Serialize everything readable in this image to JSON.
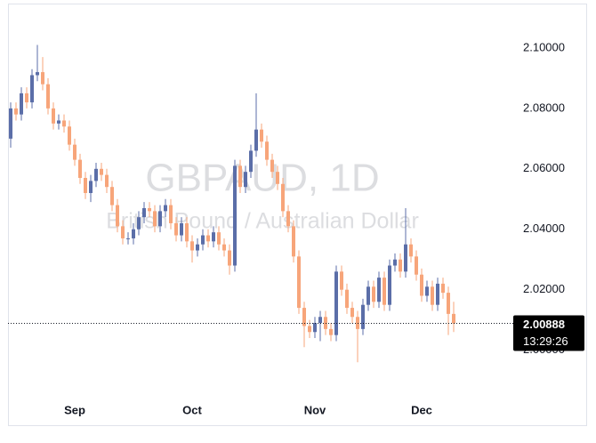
{
  "chart_data": {
    "type": "candlestick",
    "watermark": "GBPAUD, 1D",
    "watermark_subtitle": "British Pound / Australian Dollar",
    "countdown": "13:29:26",
    "up_color": "#5b6ea8",
    "down_color": "#f7a57a",
    "ylim": [
      1.984,
      2.1144
    ],
    "yticks": [
      {
        "value": 2.0,
        "label": "2.00000"
      },
      {
        "value": 2.02,
        "label": "2.02000"
      },
      {
        "value": 2.04,
        "label": "2.04000"
      },
      {
        "value": 2.06,
        "label": "2.06000"
      },
      {
        "value": 2.08,
        "label": "2.08000"
      },
      {
        "value": 2.1,
        "label": "2.10000"
      }
    ],
    "categories": [
      null,
      null,
      null,
      null,
      null,
      null,
      null,
      null,
      null,
      null,
      null,
      null,
      "Sep",
      null,
      null,
      null,
      null,
      null,
      null,
      null,
      null,
      null,
      null,
      null,
      null,
      null,
      null,
      null,
      null,
      null,
      null,
      null,
      null,
      null,
      "Oct",
      null,
      null,
      null,
      null,
      null,
      null,
      null,
      null,
      null,
      null,
      null,
      null,
      null,
      null,
      null,
      null,
      null,
      null,
      null,
      null,
      null,
      null,
      "Nov",
      null,
      null,
      null,
      null,
      null,
      null,
      null,
      null,
      null,
      null,
      null,
      null,
      null,
      null,
      null,
      null,
      null,
      null,
      null,
      "Dec",
      null,
      null,
      null,
      null,
      null,
      null
    ],
    "open": [
      2.07,
      2.08,
      2.078,
      2.085,
      2.082,
      2.091,
      2.092,
      2.088,
      2.08,
      2.075,
      2.076,
      2.074,
      2.068,
      2.063,
      2.057,
      2.052,
      2.056,
      2.06,
      2.058,
      2.054,
      2.048,
      2.041,
      2.037,
      2.037,
      2.04,
      2.044,
      2.047,
      2.046,
      2.041,
      2.046,
      2.048,
      2.042,
      2.038,
      2.042,
      2.036,
      2.033,
      2.035,
      2.038,
      2.036,
      2.039,
      2.035,
      2.033,
      2.028,
      2.061,
      2.054,
      2.059,
      2.066,
      2.073,
      2.069,
      2.063,
      2.059,
      2.055,
      2.046,
      2.041,
      2.031,
      2.014,
      2.008,
      2.006,
      2.009,
      2.011,
      2.007,
      2.005,
      2.026,
      2.02,
      2.014,
      2.011,
      2.007,
      2.015,
      2.021,
      2.016,
      2.024,
      2.015,
      2.028,
      2.03,
      2.026,
      2.035,
      2.031,
      2.025,
      2.018,
      2.021,
      2.015,
      2.022,
      2.019,
      2.012
    ],
    "high": [
      2.082,
      2.082,
      2.087,
      2.087,
      2.093,
      2.101,
      2.097,
      2.09,
      2.082,
      2.078,
      2.078,
      2.076,
      2.07,
      2.065,
      2.059,
      2.058,
      2.062,
      2.062,
      2.06,
      2.056,
      2.05,
      2.043,
      2.039,
      2.042,
      2.046,
      2.049,
      2.049,
      2.048,
      2.048,
      2.05,
      2.05,
      2.044,
      2.044,
      2.044,
      2.038,
      2.037,
      2.04,
      2.04,
      2.041,
      2.041,
      2.037,
      2.035,
      2.063,
      2.063,
      2.061,
      2.068,
      2.085,
      2.075,
      2.071,
      2.065,
      2.061,
      2.057,
      2.048,
      2.043,
      2.033,
      2.016,
      2.01,
      2.011,
      2.013,
      2.013,
      2.009,
      2.028,
      2.028,
      2.022,
      2.016,
      2.013,
      2.017,
      2.023,
      2.023,
      2.026,
      2.026,
      2.03,
      2.032,
      2.032,
      2.047,
      2.037,
      2.033,
      2.027,
      2.023,
      2.023,
      2.024,
      2.024,
      2.021,
      2.016
    ],
    "low": [
      2.067,
      2.076,
      2.076,
      2.08,
      2.08,
      2.089,
      2.086,
      2.078,
      2.073,
      2.073,
      2.072,
      2.066,
      2.061,
      2.055,
      2.05,
      2.049,
      2.054,
      2.056,
      2.052,
      2.046,
      2.039,
      2.035,
      2.035,
      2.035,
      2.038,
      2.042,
      2.044,
      2.039,
      2.039,
      2.044,
      2.04,
      2.036,
      2.036,
      2.034,
      2.029,
      2.031,
      2.033,
      2.034,
      2.034,
      2.033,
      2.031,
      2.025,
      2.026,
      2.052,
      2.052,
      2.057,
      2.064,
      2.067,
      2.061,
      2.057,
      2.053,
      2.044,
      2.039,
      2.029,
      2.012,
      2.001,
      2.004,
      2.004,
      2.003,
      2.005,
      2.003,
      2.003,
      2.018,
      2.012,
      2.009,
      1.996,
      2.005,
      2.013,
      2.014,
      2.014,
      2.013,
      2.013,
      2.026,
      2.024,
      2.024,
      2.029,
      2.023,
      2.016,
      2.016,
      2.013,
      2.013,
      2.017,
      2.005,
      2.006
    ],
    "close": [
      2.08,
      2.078,
      2.085,
      2.082,
      2.091,
      2.092,
      2.088,
      2.08,
      2.075,
      2.076,
      2.074,
      2.068,
      2.063,
      2.057,
      2.052,
      2.056,
      2.06,
      2.058,
      2.054,
      2.048,
      2.041,
      2.037,
      2.037,
      2.04,
      2.044,
      2.047,
      2.046,
      2.041,
      2.046,
      2.048,
      2.042,
      2.038,
      2.042,
      2.036,
      2.033,
      2.035,
      2.038,
      2.036,
      2.039,
      2.035,
      2.033,
      2.028,
      2.061,
      2.054,
      2.059,
      2.066,
      2.073,
      2.069,
      2.063,
      2.059,
      2.055,
      2.046,
      2.041,
      2.031,
      2.014,
      2.008,
      2.006,
      2.009,
      2.011,
      2.007,
      2.005,
      2.026,
      2.02,
      2.014,
      2.011,
      2.007,
      2.015,
      2.021,
      2.016,
      2.024,
      2.015,
      2.028,
      2.03,
      2.026,
      2.035,
      2.031,
      2.025,
      2.018,
      2.021,
      2.015,
      2.022,
      2.019,
      2.012,
      2.00888
    ]
  }
}
